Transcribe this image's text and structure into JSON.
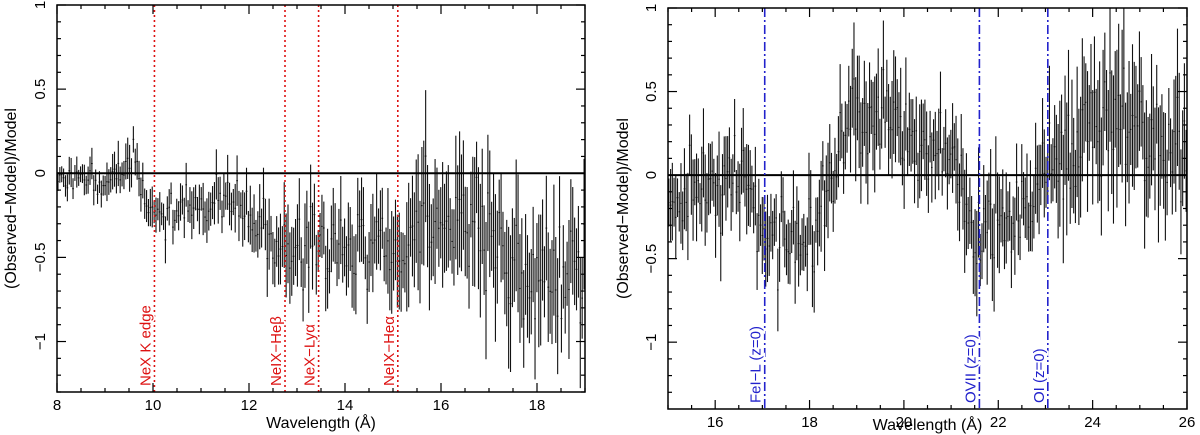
{
  "chart_data": [
    {
      "type": "scatter",
      "style": "error-bars",
      "xlabel": "Wavelength (Å)",
      "ylabel": "(Observed−Model)/Model",
      "xlim": [
        8,
        19
      ],
      "ylim": [
        -1.3,
        1.0
      ],
      "xticks": [
        "8",
        "10",
        "12",
        "14",
        "16",
        "18"
      ],
      "xtick_values": [
        8,
        10,
        12,
        14,
        16,
        18
      ],
      "yticks": [
        "−1",
        "−0.5",
        "0",
        "0.5",
        "1"
      ],
      "ytick_values": [
        -1,
        -0.5,
        0,
        0.5,
        1
      ],
      "baseline": 0,
      "line_color": "#dd1111",
      "line_style": "dotted",
      "lines": [
        {
          "x": 10.03,
          "label": "NeX K edge"
        },
        {
          "x": 12.75,
          "label": "NeIX−Heβ"
        },
        {
          "x": 13.45,
          "label": "NeX−Lyα"
        },
        {
          "x": 15.1,
          "label": "NeIX−Heα"
        }
      ],
      "trend_x": [
        8.0,
        9.0,
        9.6,
        9.9,
        10.2,
        10.6,
        11.2,
        11.8,
        12.2,
        12.6,
        12.9,
        13.3,
        13.8,
        14.3,
        14.8,
        15.2,
        15.6,
        16.2,
        16.8,
        17.3,
        17.8,
        18.3,
        18.9
      ],
      "trend_y": [
        -0.02,
        -0.05,
        0.05,
        -0.18,
        -0.25,
        -0.2,
        -0.18,
        -0.2,
        -0.35,
        -0.42,
        -0.5,
        -0.38,
        -0.5,
        -0.42,
        -0.45,
        -0.55,
        -0.2,
        -0.35,
        -0.2,
        -0.5,
        -0.62,
        -0.6,
        -0.62
      ],
      "trend_err": [
        0.07,
        0.08,
        0.12,
        0.1,
        0.1,
        0.1,
        0.12,
        0.12,
        0.15,
        0.18,
        0.2,
        0.2,
        0.22,
        0.2,
        0.22,
        0.25,
        0.3,
        0.3,
        0.3,
        0.32,
        0.3,
        0.3,
        0.3
      ],
      "n_points": 280,
      "seed": 11
    },
    {
      "type": "scatter",
      "style": "error-bars",
      "xlabel": "Wavelength (Å)",
      "ylabel": "(Observed−Model)/Model",
      "xlim": [
        15,
        26
      ],
      "ylim": [
        -1.4,
        1.0
      ],
      "xticks": [
        "16",
        "18",
        "20",
        "22",
        "24",
        "26"
      ],
      "xtick_values": [
        16,
        18,
        20,
        22,
        24,
        26
      ],
      "yticks": [
        "−1",
        "−0.5",
        "0",
        "0.5",
        "1"
      ],
      "ytick_values": [
        -1,
        -0.5,
        0,
        0.5,
        1
      ],
      "baseline": 0,
      "line_color": "#2222cc",
      "line_style": "dash-dot",
      "lines": [
        {
          "x": 17.05,
          "label": "FeI−L (z=0)"
        },
        {
          "x": 21.6,
          "label": "OVII (z=0)"
        },
        {
          "x": 23.05,
          "label": "OI (z=0)"
        }
      ],
      "trend_x": [
        15.0,
        15.8,
        16.5,
        17.0,
        17.6,
        18.0,
        18.5,
        19.0,
        19.5,
        20.0,
        20.5,
        21.0,
        21.5,
        21.8,
        22.2,
        22.6,
        23.0,
        23.5,
        24.0,
        24.5,
        25.0,
        25.5,
        26.0
      ],
      "trend_y": [
        -0.15,
        -0.1,
        0.0,
        -0.25,
        -0.4,
        -0.45,
        0.1,
        0.4,
        0.35,
        0.25,
        0.15,
        0.1,
        -0.4,
        -0.2,
        -0.3,
        -0.2,
        -0.05,
        0.1,
        0.45,
        0.35,
        0.3,
        0.1,
        0.15
      ],
      "trend_err": [
        0.18,
        0.2,
        0.22,
        0.2,
        0.18,
        0.2,
        0.22,
        0.25,
        0.25,
        0.22,
        0.2,
        0.2,
        0.25,
        0.25,
        0.22,
        0.22,
        0.25,
        0.3,
        0.35,
        0.35,
        0.3,
        0.3,
        0.3
      ],
      "n_points": 300,
      "seed": 29
    }
  ]
}
